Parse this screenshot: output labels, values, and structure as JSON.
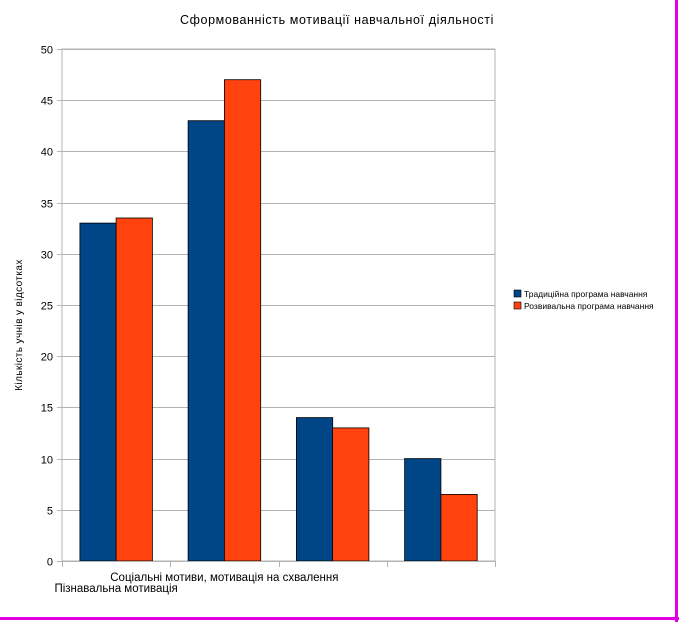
{
  "chart_data": {
    "type": "bar",
    "title": "Сформованність мотивації навчальної діяльності",
    "xlabel": "",
    "ylabel": "Кількість учнів у відсотках",
    "categories": [
      "Пізнавальна мотивація",
      "Соціальні мотиви, мотивація на схвалення",
      "",
      ""
    ],
    "series": [
      {
        "name": "Традиційна програма навчання",
        "color": "#004586",
        "values": [
          33,
          43,
          14,
          10
        ]
      },
      {
        "name": "Розвивальна програма навчання",
        "color": "#ff420e",
        "values": [
          33.5,
          47,
          13,
          6.5
        ]
      }
    ],
    "ylim": [
      0,
      50
    ],
    "yticks": [
      0,
      5,
      10,
      15,
      20,
      25,
      30,
      35,
      40,
      45,
      50
    ],
    "grid": true,
    "legend_position": "right"
  }
}
